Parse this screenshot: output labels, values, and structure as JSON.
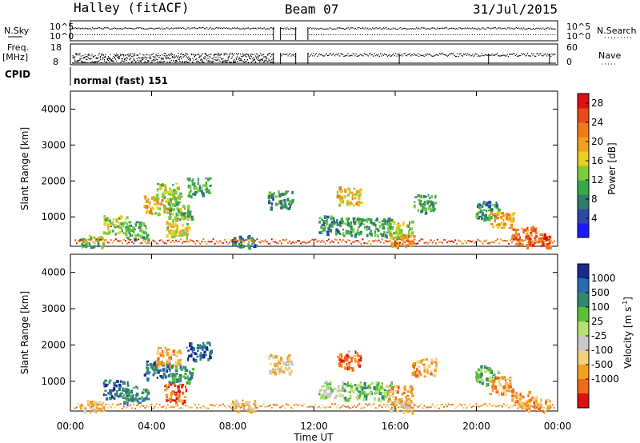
{
  "header": {
    "title": "Halley (fitACF)",
    "beam": "Beam 07",
    "date": "31/Jul/2015"
  },
  "panels": {
    "nsky_label": "N.Sky",
    "nsearch_label": "N.Search",
    "freq_label": "Freq.",
    "freq_unit": "[MHz]",
    "nave_label": "Nave",
    "cpid_label": "CPID",
    "cpid_text": "normal (fast) 151",
    "nsky_ticks": [
      "10^5",
      "10^0"
    ],
    "nsearch_ticks": [
      "10^5",
      "10^0"
    ],
    "freq_ticks": [
      "18",
      "8"
    ],
    "nave_ticks": [
      "60",
      "0"
    ]
  },
  "chart_data": [
    {
      "type": "heatmap",
      "title": "",
      "xlabel": "Time UT",
      "ylabel": "Slant Range [km]",
      "x_ticks": [
        "00:00",
        "04:00",
        "08:00",
        "12:00",
        "16:00",
        "20:00",
        "00:00"
      ],
      "y_ticks": [
        "1000",
        "2000",
        "3000",
        "4000"
      ],
      "xlim": [
        0,
        24
      ],
      "ylim": [
        180,
        4500
      ],
      "colorbar": {
        "label": "Power [dB]",
        "ticks": [
          "4",
          "8",
          "12",
          "16",
          "20",
          "24",
          "28"
        ],
        "range": [
          0,
          30
        ],
        "colors": [
          "#1a1aff",
          "#2a48a8",
          "#2e7d6b",
          "#3aa84a",
          "#7ecb3a",
          "#e8d020",
          "#f2a020",
          "#ef7a1a",
          "#e84a18",
          "#e01010"
        ]
      },
      "clusters": [
        {
          "t": 2.2,
          "r": 800,
          "v": 14
        },
        {
          "t": 3.2,
          "r": 650,
          "v": 10
        },
        {
          "t": 4.2,
          "r": 1350,
          "v": 18
        },
        {
          "t": 4.8,
          "r": 1700,
          "v": 14
        },
        {
          "t": 5.4,
          "r": 1200,
          "v": 12
        },
        {
          "t": 5.2,
          "r": 700,
          "v": 16
        },
        {
          "t": 6.3,
          "r": 1850,
          "v": 10
        },
        {
          "t": 10.3,
          "r": 1500,
          "v": 8
        },
        {
          "t": 12.8,
          "r": 800,
          "v": 8
        },
        {
          "t": 13.7,
          "r": 1600,
          "v": 18
        },
        {
          "t": 14.0,
          "r": 750,
          "v": 10
        },
        {
          "t": 15.2,
          "r": 750,
          "v": 9
        },
        {
          "t": 16.2,
          "r": 650,
          "v": 14
        },
        {
          "t": 16.3,
          "r": 300,
          "v": 22
        },
        {
          "t": 17.4,
          "r": 1400,
          "v": 10
        },
        {
          "t": 20.5,
          "r": 1200,
          "v": 8
        },
        {
          "t": 21.2,
          "r": 900,
          "v": 20
        },
        {
          "t": 22.3,
          "r": 500,
          "v": 24
        },
        {
          "t": 23.0,
          "r": 320,
          "v": 26
        },
        {
          "t": 1.0,
          "r": 250,
          "v": 12
        },
        {
          "t": 8.5,
          "r": 250,
          "v": 6
        }
      ]
    },
    {
      "type": "heatmap",
      "title": "",
      "xlabel": "Time UT",
      "ylabel": "Slant Range [km]",
      "x_ticks": [
        "00:00",
        "04:00",
        "08:00",
        "12:00",
        "16:00",
        "20:00",
        "00:00"
      ],
      "y_ticks": [
        "1000",
        "2000",
        "3000",
        "4000"
      ],
      "xlim": [
        0,
        24
      ],
      "ylim": [
        180,
        4500
      ],
      "colorbar": {
        "label": "Velocity [m s",
        "label_sup": "-1",
        "label_end": "]",
        "ticks": [
          "1000",
          "500",
          "100",
          "25",
          "-25",
          "-100",
          "-500",
          "-1000"
        ],
        "colors": [
          "#1a2a8a",
          "#2a6ab0",
          "#2e8a6b",
          "#5cbf3a",
          "#b8e070",
          "#c8c8c8",
          "#f2d080",
          "#f2a020",
          "#ef6a1a",
          "#e01010"
        ]
      },
      "clusters": [
        {
          "t": 2.2,
          "r": 800,
          "v": 1
        },
        {
          "t": 3.2,
          "r": 650,
          "v": 2
        },
        {
          "t": 4.2,
          "r": 1350,
          "v": 1
        },
        {
          "t": 4.8,
          "r": 1700,
          "v": 7
        },
        {
          "t": 5.4,
          "r": 1200,
          "v": 2
        },
        {
          "t": 5.2,
          "r": 700,
          "v": 8
        },
        {
          "t": 6.3,
          "r": 1850,
          "v": 1
        },
        {
          "t": 10.3,
          "r": 1500,
          "v": 6
        },
        {
          "t": 12.8,
          "r": 800,
          "v": 4
        },
        {
          "t": 13.7,
          "r": 1600,
          "v": 8
        },
        {
          "t": 14.0,
          "r": 750,
          "v": 3
        },
        {
          "t": 15.2,
          "r": 750,
          "v": 3
        },
        {
          "t": 16.2,
          "r": 650,
          "v": 7
        },
        {
          "t": 16.3,
          "r": 300,
          "v": 6
        },
        {
          "t": 17.4,
          "r": 1400,
          "v": 7
        },
        {
          "t": 20.5,
          "r": 1200,
          "v": 3
        },
        {
          "t": 21.2,
          "r": 900,
          "v": 7
        },
        {
          "t": 22.3,
          "r": 500,
          "v": 7
        },
        {
          "t": 23.0,
          "r": 320,
          "v": 7
        },
        {
          "t": 1.0,
          "r": 250,
          "v": 6
        },
        {
          "t": 8.5,
          "r": 250,
          "v": 6
        }
      ]
    }
  ]
}
